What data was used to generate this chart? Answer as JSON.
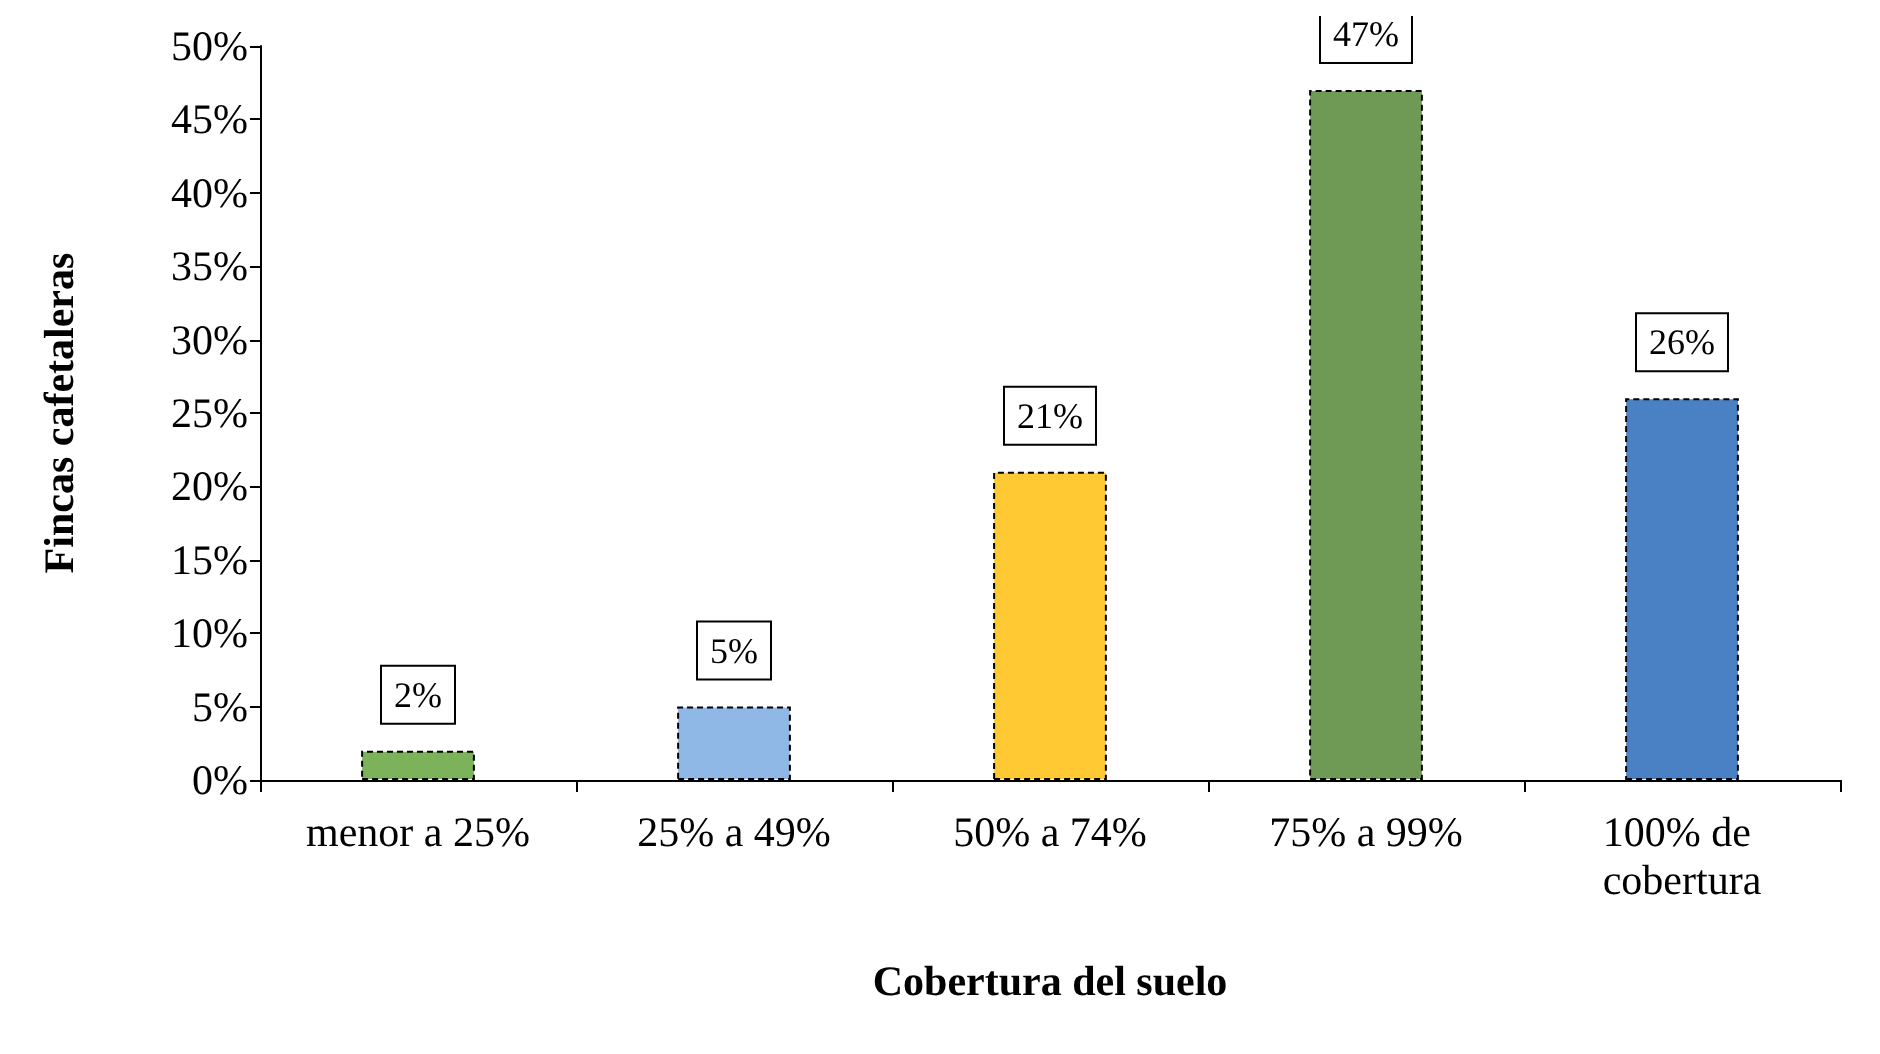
{
  "chart_data": {
    "type": "bar",
    "xlabel": "Cobertura del suelo",
    "ylabel": "Fincas cafetaleras",
    "categories": [
      "menor a 25%",
      "25% a 49%",
      "50% a 74%",
      "75% a 99%",
      "100% de cobertura"
    ],
    "values": [
      2,
      5,
      21,
      47,
      26
    ],
    "colors": [
      "#7cb35a",
      "#8fb8e6",
      "#ffc933",
      "#6f9a55",
      "#4a80c4"
    ],
    "ylim": [
      0,
      50
    ],
    "yticks": [
      {
        "value": 0,
        "label": "0%"
      },
      {
        "value": 5,
        "label": "5%"
      },
      {
        "value": 10,
        "label": "10%"
      },
      {
        "value": 15,
        "label": "15%"
      },
      {
        "value": 20,
        "label": "20%"
      },
      {
        "value": 25,
        "label": "25%"
      },
      {
        "value": 30,
        "label": "30%"
      },
      {
        "value": 35,
        "label": "35%"
      },
      {
        "value": 40,
        "label": "40%"
      },
      {
        "value": 45,
        "label": "45%"
      },
      {
        "value": 50,
        "label": "50%"
      }
    ],
    "value_labels": [
      "2%",
      "5%",
      "21%",
      "47%",
      "26%"
    ],
    "grid": false
  }
}
